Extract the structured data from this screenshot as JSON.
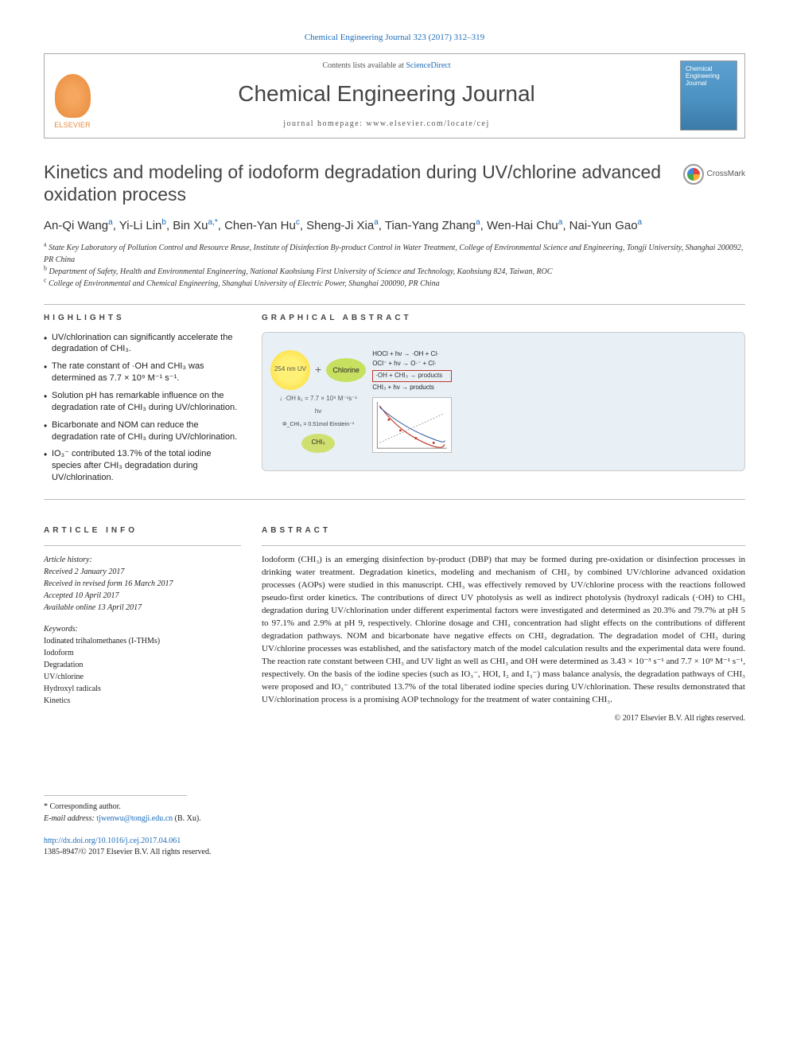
{
  "citation": "Chemical Engineering Journal 323 (2017) 312–319",
  "header": {
    "publisher": "ELSEVIER",
    "contents_prefix": "Contents lists available at ",
    "sciencedirect": "ScienceDirect",
    "journal": "Chemical Engineering Journal",
    "homepage": "journal homepage: www.elsevier.com/locate/cej",
    "cover_label": "Chemical Engineering Journal"
  },
  "title": "Kinetics and modeling of iodoform degradation during UV/chlorine advanced oxidation process",
  "crossmark": "CrossMark",
  "authors_html": "An-Qi Wang<sup>a</sup>, Yi-Li Lin<sup>b</sup>, Bin Xu<sup>a,*</sup>, Chen-Yan Hu<sup>c</sup>, Sheng-Ji Xia<sup>a</sup>, Tian-Yang Zhang<sup>a</sup>, Wen-Hai Chu<sup>a</sup>, Nai-Yun Gao<sup>a</sup>",
  "affiliations": [
    "State Key Laboratory of Pollution Control and Resource Reuse, Institute of Disinfection By-product Control in Water Treatment, College of Environmental Science and Engineering, Tongji University, Shanghai 200092, PR China",
    "Department of Safety, Health and Environmental Engineering, National Kaohsiung First University of Science and Technology, Kaohsiung 824, Taiwan, ROC",
    "College of Environmental and Chemical Engineering, Shanghai University of Electric Power, Shanghai 200090, PR China"
  ],
  "aff_markers": [
    "a",
    "b",
    "c"
  ],
  "sections": {
    "highlights_head": "HIGHLIGHTS",
    "ga_head": "GRAPHICAL ABSTRACT",
    "ai_head": "ARTICLE INFO",
    "abs_head": "ABSTRACT"
  },
  "highlights": [
    "UV/chlorination can significantly accelerate the degradation of CHI₃.",
    "The rate constant of ·OH and CHI₃ was determined as 7.7 × 10⁹ M⁻¹ s⁻¹.",
    "Solution pH has remarkable influence on the degradation rate of CHI₃ during UV/chlorination.",
    "Bicarbonate and NOM can reduce the degradation rate of CHI₃ during UV/chlorination.",
    "IO₃⁻ contributed 13.7% of the total iodine species after CHI₃ degradation during UV/chlorination."
  ],
  "ga": {
    "uv_label": "254 nm UV",
    "plus": "+",
    "chlorine": "Chlorine",
    "oh": "·OH",
    "koh": "k₁ = 7.7 × 10⁹ M⁻¹s⁻¹",
    "hv": "hν",
    "phi": "Φ_CHI₃ = 0.51mol Einstein⁻¹",
    "chi3": "CHI₃",
    "eq1": "HOCl + hν → ·OH + Cl·",
    "eq2": "OCl⁻ + hν → O·⁻ + Cl·",
    "eq3": "·OH + CHI₃ → products",
    "eq4": "CHI₃ + hν → products",
    "chart_colors": {
      "bg": "#ffffff",
      "red": "#c0392b",
      "blue": "#2c5aa0",
      "grey": "#888888"
    }
  },
  "article_info": {
    "history_head": "Article history:",
    "received": "Received 2 January 2017",
    "revised": "Received in revised form 16 March 2017",
    "accepted": "Accepted 10 April 2017",
    "online": "Available online 13 April 2017",
    "keywords_head": "Keywords:",
    "keywords": [
      "Iodinated trihalomethanes (I-THMs)",
      "Iodoform",
      "Degradation",
      "UV/chlorine",
      "Hydroxyl radicals",
      "Kinetics"
    ]
  },
  "abstract": "Iodoform (CHI₃) is an emerging disinfection by-product (DBP) that may be formed during pre-oxidation or disinfection processes in drinking water treatment. Degradation kinetics, modeling and mechanism of CHI₃ by combined UV/chlorine advanced oxidation processes (AOPs) were studied in this manuscript. CHI₃ was effectively removed by UV/chlorine process with the reactions followed pseudo-first order kinetics. The contributions of direct UV photolysis as well as indirect photolysis (hydroxyl radicals (·OH) to CHI₃ degradation during UV/chlorination under different experimental factors were investigated and determined as 20.3% and 79.7% at pH 5 to 97.1% and 2.9% at pH 9, respectively. Chlorine dosage and CHI₃ concentration had slight effects on the contributions of different degradation pathways. NOM and bicarbonate have negative effects on CHI₃ degradation. The degradation model of CHI₃ during UV/chlorine processes was established, and the satisfactory match of the model calculation results and the experimental data were found. The reaction rate constant between CHI₃ and UV light as well as CHI₃ and OH were determined as 3.43 × 10⁻³ s⁻¹ and 7.7 × 10⁹ M⁻¹ s⁻¹, respectively. On the basis of the iodine species (such as IO₃⁻, HOI, I₂ and I₃⁻) mass balance analysis, the degradation pathways of CHI₃ were proposed and IO₃⁻ contributed 13.7% of the total liberated iodine species during UV/chlorination. These results demonstrated that UV/chlorination process is a promising AOP technology for the treatment of water containing CHI₃.",
  "copyright": "© 2017 Elsevier B.V. All rights reserved.",
  "footer": {
    "corr_mark": "* Corresponding author.",
    "email_label": "E-mail address:",
    "email": "tjwenwu@tongji.edu.cn",
    "email_who": "(B. Xu).",
    "doi": "http://dx.doi.org/10.1016/j.cej.2017.04.061",
    "issn": "1385-8947/© 2017 Elsevier B.V. All rights reserved."
  }
}
